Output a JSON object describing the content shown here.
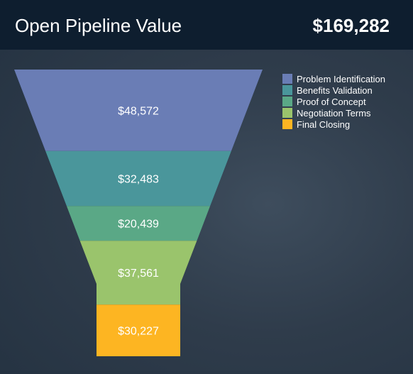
{
  "header": {
    "title": "Open Pipeline Value",
    "total": "$169,282"
  },
  "colors": {
    "header_bg": "#0e1e2f",
    "text": "#ffffff"
  },
  "chart_data": {
    "type": "funnel",
    "title": "Open Pipeline Value",
    "total": 169282,
    "stages": [
      {
        "name": "Problem Identification",
        "value": 48572,
        "label": "$48,572",
        "color": "#6a7db5"
      },
      {
        "name": "Benefits Validation",
        "value": 32483,
        "label": "$32,483",
        "color": "#4a969b"
      },
      {
        "name": "Proof of Concept",
        "value": 20439,
        "label": "$20,439",
        "color": "#5aa886"
      },
      {
        "name": "Negotiation Terms",
        "value": 37561,
        "label": "$37,561",
        "color": "#9ac46c"
      },
      {
        "name": "Final Closing",
        "value": 30227,
        "label": "$30,227",
        "color": "#fdb522"
      }
    ],
    "legend_position": "top-right"
  }
}
